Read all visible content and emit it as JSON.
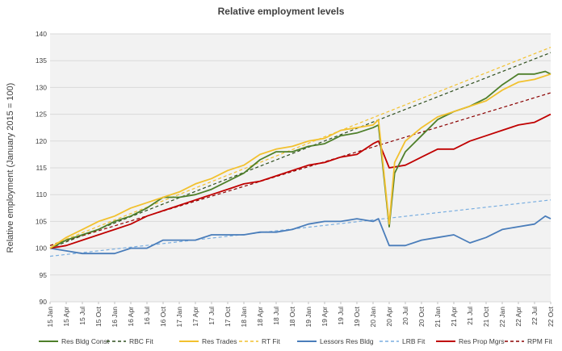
{
  "chart_data": {
    "type": "line",
    "title": "Relative employment levels",
    "xlabel": "",
    "ylabel": "Relative employment (January 2015 = 100)",
    "ylim": [
      90,
      140
    ],
    "yticks": [
      90,
      95,
      100,
      105,
      110,
      115,
      120,
      125,
      130,
      135,
      140
    ],
    "x_tick_labels": [
      "15 Jan",
      "15 Apr",
      "15 Jul",
      "15 Oct",
      "16 Jan",
      "16 Apr",
      "16 Jul",
      "16 Oct",
      "17 Jan",
      "17 Apr",
      "17 Jul",
      "17 Oct",
      "18 Jan",
      "18 Apr",
      "18 Jul",
      "18 Oct",
      "19 Jan",
      "19 Apr",
      "19 Jul",
      "19 Oct",
      "20 Jan",
      "20 Apr",
      "20 Jul",
      "20 Oct",
      "21 Jan",
      "21 Apr",
      "21 Jul",
      "21 Oct",
      "22 Jan",
      "22 Apr",
      "22 Jul",
      "22 Oct"
    ],
    "x_start": "2015-01",
    "x_end": "2022-10",
    "grid": "horizontal",
    "legend_position": "bottom",
    "series": [
      {
        "name": "Res Bldg Const",
        "color": "#4e7f2a",
        "style": "solid",
        "points": [
          [
            "2015-01",
            100
          ],
          [
            "2015-04",
            101.5
          ],
          [
            "2015-07",
            102.5
          ],
          [
            "2015-10",
            103.5
          ],
          [
            "2016-01",
            105
          ],
          [
            "2016-04",
            106
          ],
          [
            "2016-07",
            107.5
          ],
          [
            "2016-10",
            109.5
          ],
          [
            "2017-01",
            109.5
          ],
          [
            "2017-04",
            110
          ],
          [
            "2017-07",
            111
          ],
          [
            "2017-10",
            112.5
          ],
          [
            "2018-01",
            114
          ],
          [
            "2018-04",
            116.5
          ],
          [
            "2018-07",
            118
          ],
          [
            "2018-10",
            118
          ],
          [
            "2019-01",
            119
          ],
          [
            "2019-04",
            119.5
          ],
          [
            "2019-07",
            121
          ],
          [
            "2019-10",
            121.5
          ],
          [
            "2020-01",
            122.5
          ],
          [
            "2020-02",
            123
          ],
          [
            "2020-04",
            104
          ],
          [
            "2020-05",
            114
          ],
          [
            "2020-07",
            118
          ],
          [
            "2020-10",
            121
          ],
          [
            "2021-01",
            124
          ],
          [
            "2021-04",
            125.5
          ],
          [
            "2021-07",
            126.5
          ],
          [
            "2021-10",
            128
          ],
          [
            "2022-01",
            130.5
          ],
          [
            "2022-04",
            132.5
          ],
          [
            "2022-07",
            132.5
          ],
          [
            "2022-09",
            133
          ],
          [
            "2022-10",
            132.5
          ]
        ]
      },
      {
        "name": "RBC Fit",
        "color": "#2e4e1e",
        "style": "dashed",
        "points": [
          [
            "2015-01",
            100
          ],
          [
            "2022-10",
            136.5
          ]
        ]
      },
      {
        "name": "Res Trades",
        "color": "#f2c12e",
        "style": "solid",
        "points": [
          [
            "2015-01",
            100
          ],
          [
            "2015-04",
            102
          ],
          [
            "2015-07",
            103.5
          ],
          [
            "2015-10",
            105
          ],
          [
            "2016-01",
            106
          ],
          [
            "2016-04",
            107.5
          ],
          [
            "2016-07",
            108.5
          ],
          [
            "2016-10",
            109.5
          ],
          [
            "2017-01",
            110.5
          ],
          [
            "2017-04",
            112
          ],
          [
            "2017-07",
            113
          ],
          [
            "2017-10",
            114.5
          ],
          [
            "2018-01",
            115.5
          ],
          [
            "2018-04",
            117.5
          ],
          [
            "2018-07",
            118.5
          ],
          [
            "2018-10",
            119
          ],
          [
            "2019-01",
            120
          ],
          [
            "2019-04",
            120.5
          ],
          [
            "2019-07",
            122
          ],
          [
            "2019-10",
            122.5
          ],
          [
            "2020-01",
            123
          ],
          [
            "2020-02",
            124
          ],
          [
            "2020-04",
            104.5
          ],
          [
            "2020-05",
            116
          ],
          [
            "2020-07",
            120
          ],
          [
            "2020-10",
            122.5
          ],
          [
            "2021-01",
            124.5
          ],
          [
            "2021-04",
            125.5
          ],
          [
            "2021-07",
            126.5
          ],
          [
            "2021-10",
            127.5
          ],
          [
            "2022-01",
            129.5
          ],
          [
            "2022-04",
            131
          ],
          [
            "2022-07",
            131.5
          ],
          [
            "2022-10",
            132.5
          ]
        ]
      },
      {
        "name": "RT Fit",
        "color": "#f2c12e",
        "style": "dashed",
        "points": [
          [
            "2015-01",
            100.5
          ],
          [
            "2022-10",
            137.5
          ]
        ]
      },
      {
        "name": "Lessors Res Bldg",
        "color": "#4a7dba",
        "style": "solid",
        "points": [
          [
            "2015-01",
            100
          ],
          [
            "2015-04",
            99.5
          ],
          [
            "2015-07",
            99
          ],
          [
            "2015-10",
            99
          ],
          [
            "2016-01",
            99
          ],
          [
            "2016-04",
            100
          ],
          [
            "2016-07",
            100
          ],
          [
            "2016-10",
            101.5
          ],
          [
            "2017-01",
            101.5
          ],
          [
            "2017-04",
            101.5
          ],
          [
            "2017-07",
            102.5
          ],
          [
            "2017-10",
            102.5
          ],
          [
            "2018-01",
            102.5
          ],
          [
            "2018-04",
            103
          ],
          [
            "2018-07",
            103
          ],
          [
            "2018-10",
            103.5
          ],
          [
            "2019-01",
            104.5
          ],
          [
            "2019-04",
            105
          ],
          [
            "2019-07",
            105
          ],
          [
            "2019-10",
            105.5
          ],
          [
            "2020-01",
            105
          ],
          [
            "2020-02",
            105.5
          ],
          [
            "2020-04",
            100.5
          ],
          [
            "2020-07",
            100.5
          ],
          [
            "2020-10",
            101.5
          ],
          [
            "2021-01",
            102
          ],
          [
            "2021-04",
            102.5
          ],
          [
            "2021-07",
            101
          ],
          [
            "2021-10",
            102
          ],
          [
            "2022-01",
            103.5
          ],
          [
            "2022-04",
            104
          ],
          [
            "2022-07",
            104.5
          ],
          [
            "2022-09",
            106
          ],
          [
            "2022-10",
            105.5
          ]
        ]
      },
      {
        "name": "LRB Fit",
        "color": "#7aaee0",
        "style": "dashed",
        "points": [
          [
            "2015-01",
            98.5
          ],
          [
            "2022-10",
            109
          ]
        ]
      },
      {
        "name": "Res Prop Mgrs",
        "color": "#c00000",
        "style": "solid",
        "points": [
          [
            "2015-01",
            100
          ],
          [
            "2015-04",
            100.5
          ],
          [
            "2015-07",
            101.5
          ],
          [
            "2015-10",
            102.5
          ],
          [
            "2016-01",
            103.5
          ],
          [
            "2016-04",
            104.5
          ],
          [
            "2016-07",
            106
          ],
          [
            "2016-10",
            107
          ],
          [
            "2017-01",
            108
          ],
          [
            "2017-04",
            109
          ],
          [
            "2017-07",
            110
          ],
          [
            "2017-10",
            111
          ],
          [
            "2018-01",
            112
          ],
          [
            "2018-04",
            112.5
          ],
          [
            "2018-07",
            113.5
          ],
          [
            "2018-10",
            114.5
          ],
          [
            "2019-01",
            115.5
          ],
          [
            "2019-04",
            116
          ],
          [
            "2019-07",
            117
          ],
          [
            "2019-10",
            117.5
          ],
          [
            "2020-01",
            119.5
          ],
          [
            "2020-02",
            120
          ],
          [
            "2020-04",
            115
          ],
          [
            "2020-07",
            115.5
          ],
          [
            "2020-10",
            117
          ],
          [
            "2021-01",
            118.5
          ],
          [
            "2021-04",
            118.5
          ],
          [
            "2021-07",
            120
          ],
          [
            "2021-10",
            121
          ],
          [
            "2022-01",
            122
          ],
          [
            "2022-04",
            123
          ],
          [
            "2022-07",
            123.5
          ],
          [
            "2022-09",
            124.5
          ],
          [
            "2022-10",
            125
          ]
        ]
      },
      {
        "name": "RPM Fit",
        "color": "#8b0000",
        "style": "dashed",
        "points": [
          [
            "2015-01",
            100.5
          ],
          [
            "2022-10",
            129
          ]
        ]
      }
    ]
  }
}
